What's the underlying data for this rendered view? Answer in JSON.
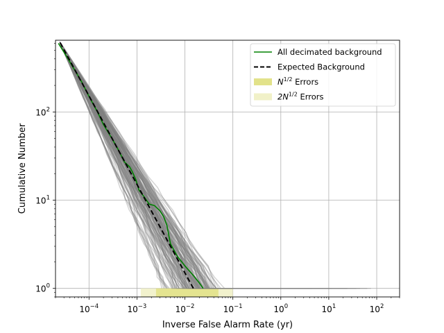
{
  "chart_data": {
    "type": "line",
    "title": "",
    "xlabel": "Inverse False Alarm Rate (yr)",
    "ylabel": "Cumulative Number",
    "xscale": "log",
    "yscale": "log",
    "xlim": [
      2e-05,
      300
    ],
    "ylim": [
      0.8,
      650
    ],
    "grid": true,
    "legend_position": "top-right",
    "x_ticks": [
      {
        "value": 0.0001,
        "mant": "10",
        "exp": "−4"
      },
      {
        "value": 0.001,
        "mant": "10",
        "exp": "−3"
      },
      {
        "value": 0.01,
        "mant": "10",
        "exp": "−2"
      },
      {
        "value": 0.1,
        "mant": "10",
        "exp": "−1"
      },
      {
        "value": 1,
        "mant": "10",
        "exp": "0"
      },
      {
        "value": 10,
        "mant": "10",
        "exp": "1"
      },
      {
        "value": 100,
        "mant": "10",
        "exp": "2"
      }
    ],
    "y_ticks": [
      {
        "value": 1,
        "mant": "10",
        "exp": "0"
      },
      {
        "value": 10,
        "mant": "10",
        "exp": "1"
      },
      {
        "value": 100,
        "mant": "10",
        "exp": "2"
      }
    ],
    "legend": [
      {
        "label": "All decimated background",
        "kind": "line",
        "color": "#008000"
      },
      {
        "label": "Expected Background",
        "kind": "dashed",
        "color": "#000000"
      },
      {
        "label_base": "N",
        "label_sup": "1/2",
        "label_rest": " Errors",
        "kind": "patch",
        "color": "#e2e28a"
      },
      {
        "label_base": "2N",
        "label_sup": "1/2",
        "label_rest": " Errors",
        "kind": "patch",
        "color": "#f1f1c8"
      }
    ],
    "series": [
      {
        "name": "All decimated background",
        "color": "#008000",
        "x": [
          2.3e-05,
          3.2e-05,
          5e-05,
          7e-05,
          0.0001,
          0.00015,
          0.0002,
          0.0003,
          0.0004,
          0.00055,
          0.0007,
          0.0008,
          0.00095,
          0.0011,
          0.0014,
          0.0018,
          0.0023,
          0.003,
          0.0036,
          0.0042,
          0.005,
          0.007,
          0.01,
          0.015,
          0.02,
          0.024
        ],
        "y": [
          600,
          450,
          300,
          220,
          150,
          100,
          72,
          50,
          38,
          27,
          24,
          21,
          17,
          13,
          11,
          9,
          8.7,
          7.6,
          6.5,
          5.2,
          3.2,
          2.3,
          1.8,
          1.4,
          1.15,
          1.0
        ]
      },
      {
        "name": "Expected Background",
        "color": "#000000",
        "dashed": true,
        "x": [
          2.5e-05,
          0.015
        ],
        "y": [
          610,
          1.0
        ]
      }
    ],
    "error_bands": [
      {
        "name": "N^1/2 Errors",
        "color": "#e2e28a",
        "x_range": [
          0.0025,
          0.05
        ]
      },
      {
        "name": "2N^1/2 Errors",
        "color": "#f1f1c8",
        "x_range": [
          0.0012,
          0.1
        ]
      }
    ]
  }
}
